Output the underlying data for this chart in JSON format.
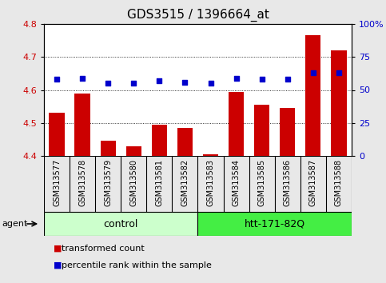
{
  "title": "GDS3515 / 1396664_at",
  "samples": [
    "GSM313577",
    "GSM313578",
    "GSM313579",
    "GSM313580",
    "GSM313581",
    "GSM313582",
    "GSM313583",
    "GSM313584",
    "GSM313585",
    "GSM313586",
    "GSM313587",
    "GSM313588"
  ],
  "bar_values": [
    4.53,
    4.59,
    4.445,
    4.43,
    4.495,
    4.485,
    4.405,
    4.595,
    4.555,
    4.545,
    4.765,
    4.72
  ],
  "percentile_values": [
    58,
    59,
    55,
    55,
    57,
    56,
    55,
    59,
    58,
    58,
    63,
    63
  ],
  "ylim_left": [
    4.4,
    4.8
  ],
  "ylim_right": [
    0,
    100
  ],
  "yticks_left": [
    4.4,
    4.5,
    4.6,
    4.7,
    4.8
  ],
  "yticks_right": [
    0,
    25,
    50,
    75,
    100
  ],
  "bar_color": "#cc0000",
  "dot_color": "#0000cc",
  "bar_bottom": 4.4,
  "groups": [
    {
      "label": "control",
      "indices": [
        0,
        1,
        2,
        3,
        4,
        5
      ],
      "color": "#ccffcc"
    },
    {
      "label": "htt-171-82Q",
      "indices": [
        6,
        7,
        8,
        9,
        10,
        11
      ],
      "color": "#44ee44"
    }
  ],
  "group_row_label": "agent",
  "legend_items": [
    {
      "label": "transformed count",
      "color": "#cc0000"
    },
    {
      "label": "percentile rank within the sample",
      "color": "#0000cc"
    }
  ],
  "grid_color": "black",
  "background_color": "#e8e8e8",
  "sample_band_color": "#c8c8c8",
  "plot_bg": "white",
  "tick_label_color_left": "#cc0000",
  "tick_label_color_right": "#0000cc",
  "title_fontsize": 11,
  "axis_fontsize": 8,
  "sample_fontsize": 7,
  "legend_fontsize": 8,
  "group_fontsize": 9
}
